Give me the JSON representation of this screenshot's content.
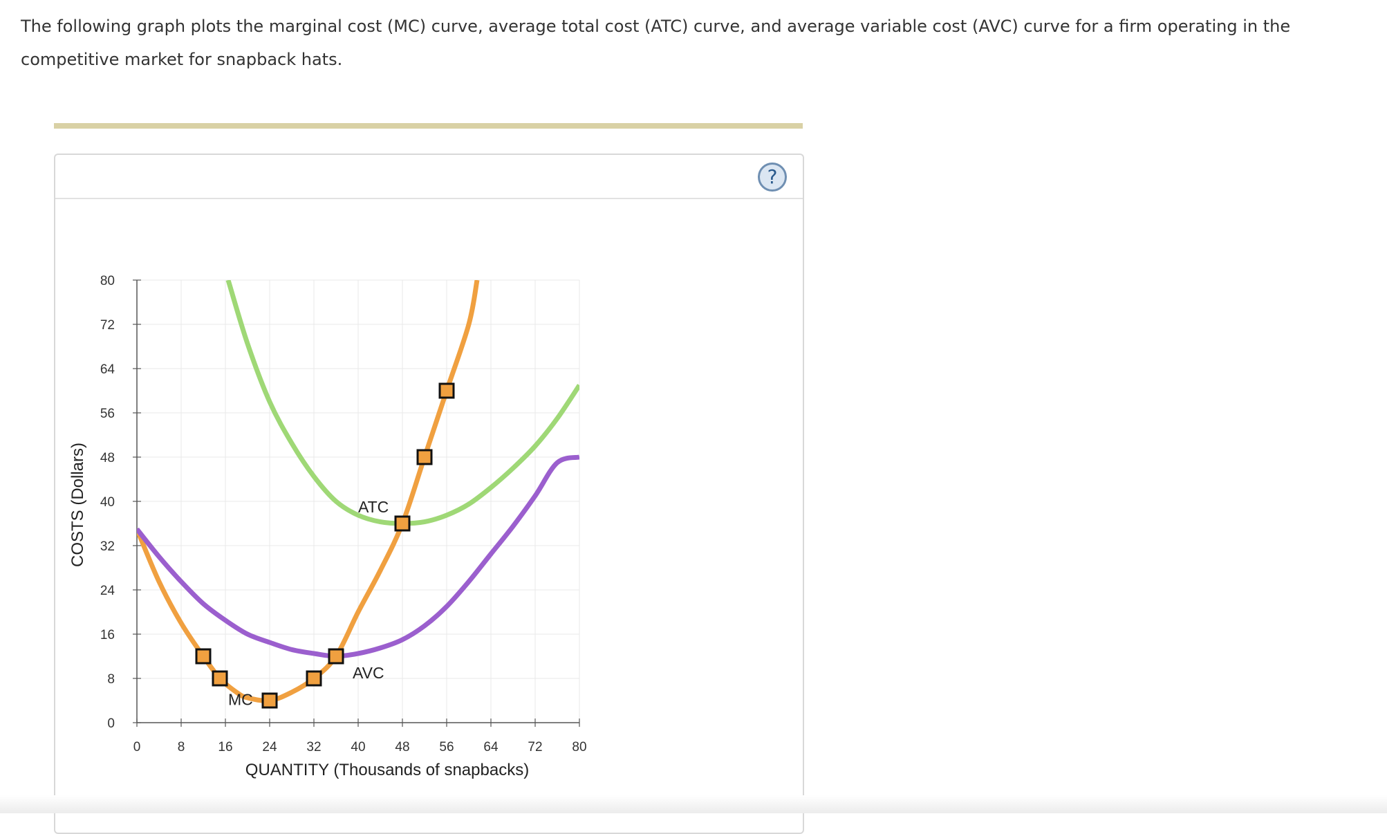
{
  "prompt": "The following graph plots the marginal cost (MC) curve, average total cost (ATC) curve, and average variable cost (AVC) curve for a firm operating in the competitive market for snapback hats.",
  "help_icon": "question-mark-icon",
  "help_label": "?",
  "chart_data": {
    "type": "line",
    "xlabel": "QUANTITY (Thousands of snapbacks)",
    "ylabel": "COSTS (Dollars)",
    "xlim": [
      0,
      80
    ],
    "ylim": [
      0,
      80
    ],
    "xticks": [
      0,
      8,
      16,
      24,
      32,
      40,
      48,
      56,
      64,
      72,
      80
    ],
    "yticks": [
      0,
      8,
      16,
      24,
      32,
      40,
      48,
      56,
      64,
      72,
      80
    ],
    "grid": true,
    "series": [
      {
        "name": "MC",
        "color": "#f0a040",
        "x": [
          0,
          4,
          8,
          12,
          15,
          18,
          20,
          24,
          28,
          32,
          36,
          40,
          44,
          48,
          52,
          56,
          60,
          61.5
        ],
        "y": [
          35,
          25.5,
          18,
          12,
          8,
          5.5,
          4.5,
          4,
          5.5,
          8,
          12,
          20,
          27.5,
          36,
          48,
          60,
          72,
          80
        ],
        "markers": [
          {
            "x": 12,
            "y": 12
          },
          {
            "x": 15,
            "y": 8
          },
          {
            "x": 24,
            "y": 4
          },
          {
            "x": 32,
            "y": 8
          },
          {
            "x": 36,
            "y": 12
          },
          {
            "x": 48,
            "y": 36
          },
          {
            "x": 52,
            "y": 48
          },
          {
            "x": 56,
            "y": 60
          }
        ]
      },
      {
        "name": "ATC",
        "color": "#9fd876",
        "x": [
          16.5,
          20,
          24,
          28,
          32,
          36,
          40,
          44,
          48,
          52,
          56,
          60,
          64,
          68,
          72,
          76,
          80
        ],
        "y": [
          80,
          68.5,
          58,
          50.5,
          44.5,
          40,
          37.5,
          36.3,
          36,
          36.3,
          37.5,
          39.5,
          42.5,
          46,
          50,
          55,
          61
        ]
      },
      {
        "name": "AVC",
        "color": "#9b5fce",
        "x": [
          0,
          4,
          8,
          12,
          16,
          20,
          24,
          28,
          32,
          36,
          40,
          44,
          48,
          52,
          56,
          60,
          64,
          68,
          72,
          76,
          80
        ],
        "y": [
          35,
          30,
          25.5,
          21.5,
          18.5,
          16,
          14.5,
          13.2,
          12.5,
          12,
          12.5,
          13.5,
          15,
          17.5,
          21,
          25.5,
          30.5,
          35.5,
          41,
          47,
          48
        ]
      }
    ],
    "curve_labels": [
      {
        "text": "ATC",
        "x": 40,
        "y": 38
      },
      {
        "text": "AVC",
        "x": 39,
        "y": 8
      },
      {
        "text": "MC",
        "x": 16.5,
        "y": 3.2
      }
    ]
  }
}
